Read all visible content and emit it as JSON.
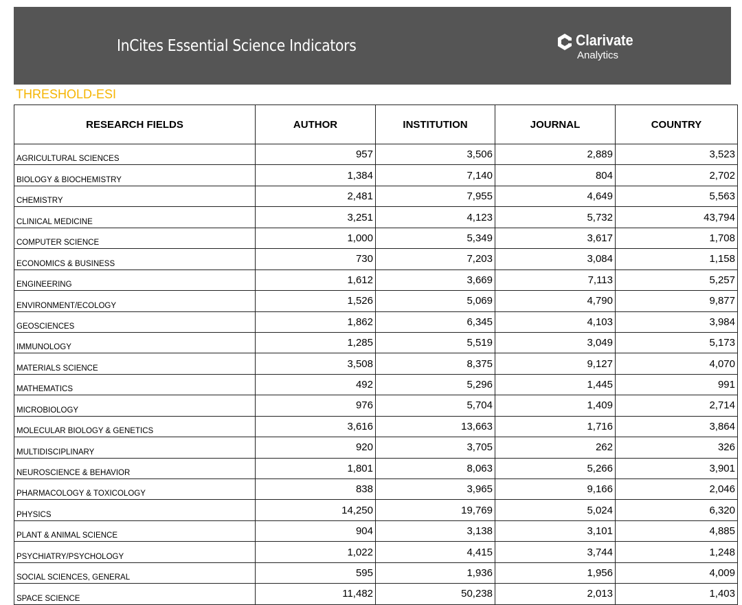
{
  "header": {
    "title": "InCites Essential Science Indicators",
    "logo": {
      "name": "Clarivate",
      "sub": "Analytics"
    }
  },
  "subtitle": "THRESHOLD-ESI",
  "table": {
    "columns": [
      "RESEARCH FIELDS",
      "AUTHOR",
      "INSTITUTION",
      "JOURNAL",
      "COUNTRY"
    ],
    "rows": [
      [
        "AGRICULTURAL SCIENCES",
        "957",
        "3,506",
        "2,889",
        "3,523"
      ],
      [
        "BIOLOGY & BIOCHEMISTRY",
        "1,384",
        "7,140",
        "804",
        "2,702"
      ],
      [
        "CHEMISTRY",
        "2,481",
        "7,955",
        "4,649",
        "5,563"
      ],
      [
        "CLINICAL MEDICINE",
        "3,251",
        "4,123",
        "5,732",
        "43,794"
      ],
      [
        "COMPUTER SCIENCE",
        "1,000",
        "5,349",
        "3,617",
        "1,708"
      ],
      [
        "ECONOMICS & BUSINESS",
        "730",
        "7,203",
        "3,084",
        "1,158"
      ],
      [
        "ENGINEERING",
        "1,612",
        "3,669",
        "7,113",
        "5,257"
      ],
      [
        "ENVIRONMENT/ECOLOGY",
        "1,526",
        "5,069",
        "4,790",
        "9,877"
      ],
      [
        "GEOSCIENCES",
        "1,862",
        "6,345",
        "4,103",
        "3,984"
      ],
      [
        "IMMUNOLOGY",
        "1,285",
        "5,519",
        "3,049",
        "5,173"
      ],
      [
        "MATERIALS SCIENCE",
        "3,508",
        "8,375",
        "9,127",
        "4,070"
      ],
      [
        "MATHEMATICS",
        "492",
        "5,296",
        "1,445",
        "991"
      ],
      [
        "MICROBIOLOGY",
        "976",
        "5,704",
        "1,409",
        "2,714"
      ],
      [
        "MOLECULAR BIOLOGY & GENETICS",
        "3,616",
        "13,663",
        "1,716",
        "3,864"
      ],
      [
        "MULTIDISCIPLINARY",
        "920",
        "3,705",
        "262",
        "326"
      ],
      [
        "NEUROSCIENCE & BEHAVIOR",
        "1,801",
        "8,063",
        "5,266",
        "3,901"
      ],
      [
        "PHARMACOLOGY & TOXICOLOGY",
        "838",
        "3,965",
        "9,166",
        "2,046"
      ],
      [
        "PHYSICS",
        "14,250",
        "19,769",
        "5,024",
        "6,320"
      ],
      [
        "PLANT & ANIMAL SCIENCE",
        "904",
        "3,138",
        "3,101",
        "4,885"
      ],
      [
        "PSYCHIATRY/PSYCHOLOGY",
        "1,022",
        "4,415",
        "3,744",
        "1,248"
      ],
      [
        "SOCIAL SCIENCES, GENERAL",
        "595",
        "1,936",
        "1,956",
        "4,009"
      ],
      [
        "SPACE SCIENCE",
        "11,482",
        "50,238",
        "2,013",
        "1,403"
      ]
    ]
  }
}
